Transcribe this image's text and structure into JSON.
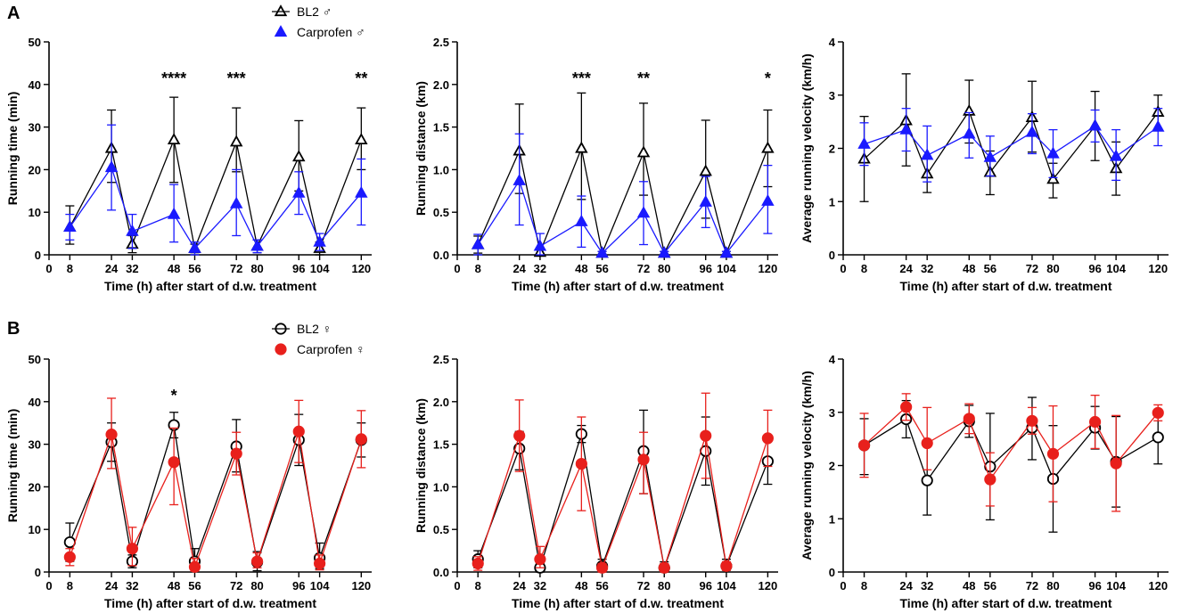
{
  "chart_data": {
    "rows": [
      {
        "letter": "A",
        "legend": [
          {
            "label": "BL2 ♂",
            "color": "#000000",
            "marker": "triangle-open"
          },
          {
            "label": "Carprofen ♂",
            "color": "#1a1aff",
            "marker": "triangle-filled"
          }
        ],
        "series_colors": [
          "#000000",
          "#1a1aff"
        ],
        "series_markers": [
          "triangle-open",
          "triangle-filled"
        ]
      },
      {
        "letter": "B",
        "legend": [
          {
            "label": "BL2 ♀",
            "color": "#000000",
            "marker": "circle-open"
          },
          {
            "label": "Carprofen ♀",
            "color": "#e8201c",
            "marker": "circle-filled"
          }
        ],
        "series_colors": [
          "#000000",
          "#e8201c"
        ],
        "series_markers": [
          "circle-open",
          "circle-filled"
        ]
      }
    ],
    "x_values": [
      8,
      24,
      32,
      48,
      56,
      72,
      80,
      96,
      104,
      120
    ],
    "x_tick_labels": [
      "0",
      "8",
      "24",
      "32",
      "48",
      "56",
      "72",
      "80",
      "96",
      "104",
      "120"
    ],
    "x_ticks": [
      0,
      8,
      24,
      32,
      48,
      56,
      72,
      80,
      96,
      104,
      120
    ],
    "xlabel": "Time (h) after start of d.w. treatment",
    "xlim": [
      0,
      124
    ],
    "charts": [
      {
        "id": "A-time",
        "row": 0,
        "col": 0,
        "type": "line",
        "ylabel": "Running time (min)",
        "ylim": [
          0,
          50
        ],
        "y_ticks": [
          0,
          10,
          20,
          30,
          40,
          50
        ],
        "y_tick_labels": [
          "0",
          "10",
          "20",
          "30",
          "40",
          "50"
        ],
        "series": [
          {
            "name": "BL2 ♂",
            "values": [
              6.5,
              25,
              2.5,
              27,
              1.5,
              26.5,
              2,
              23,
              1.5,
              27
            ],
            "err_up": [
              5,
              9,
              2,
              10,
              1,
              8,
              1.5,
              8.5,
              1.5,
              7.5
            ],
            "err_down": [
              4,
              8,
              2,
              10,
              1,
              7,
              1.5,
              8,
              1.5,
              7
            ]
          },
          {
            "name": "Carprofen ♂",
            "values": [
              6.5,
              20.5,
              5.5,
              9.5,
              1.5,
              12,
              2,
              14.5,
              3,
              14.5
            ],
            "err_up": [
              3,
              10,
              4,
              7,
              1.5,
              8,
              1.5,
              5,
              2,
              8
            ],
            "err_down": [
              3,
              10,
              4,
              6.5,
              1.5,
              7.5,
              1.5,
              5,
              2,
              7.5
            ]
          }
        ],
        "annotations": [
          {
            "x": 48,
            "text": "****"
          },
          {
            "x": 72,
            "text": "***"
          },
          {
            "x": 120,
            "text": "**"
          }
        ]
      },
      {
        "id": "A-distance",
        "row": 0,
        "col": 1,
        "type": "line",
        "ylabel": "Running distance (km)",
        "ylim": [
          0,
          2.5
        ],
        "y_ticks": [
          0,
          0.5,
          1.0,
          1.5,
          2.0,
          2.5
        ],
        "y_tick_labels": [
          "0.0",
          "0.5",
          "1.0",
          "1.5",
          "2.0",
          "2.5"
        ],
        "series": [
          {
            "name": "BL2 ♂",
            "values": [
              0.12,
              1.22,
              0.03,
              1.25,
              0.02,
              1.2,
              0.02,
              0.98,
              0.02,
              1.25
            ],
            "err_up": [
              0.1,
              0.55,
              0.05,
              0.65,
              0.02,
              0.58,
              0.02,
              0.6,
              0.02,
              0.45
            ],
            "err_down": [
              0.1,
              0.5,
              0.03,
              0.6,
              0.02,
              0.5,
              0.02,
              0.55,
              0.02,
              0.45
            ]
          },
          {
            "name": "Carprofen ♂",
            "values": [
              0.12,
              0.87,
              0.1,
              0.39,
              0.02,
              0.49,
              0.02,
              0.62,
              0.02,
              0.63
            ],
            "err_up": [
              0.12,
              0.55,
              0.15,
              0.3,
              0.02,
              0.37,
              0.02,
              0.3,
              0.02,
              0.42
            ],
            "err_down": [
              0.12,
              0.52,
              0.1,
              0.3,
              0.02,
              0.37,
              0.02,
              0.3,
              0.02,
              0.38
            ]
          }
        ],
        "annotations": [
          {
            "x": 48,
            "text": "***"
          },
          {
            "x": 72,
            "text": "**"
          },
          {
            "x": 120,
            "text": "*"
          }
        ]
      },
      {
        "id": "A-velocity",
        "row": 0,
        "col": 2,
        "type": "line",
        "ylabel": "Average running velocity (km/h)",
        "ylim": [
          0,
          4
        ],
        "y_ticks": [
          0,
          1,
          2,
          3,
          4
        ],
        "y_tick_labels": [
          "0",
          "1",
          "2",
          "3",
          "4"
        ],
        "series": [
          {
            "name": "BL2 ♂",
            "values": [
              1.8,
              2.52,
              1.52,
              2.7,
              1.55,
              2.58,
              1.42,
              2.42,
              1.62,
              2.68
            ],
            "err_up": [
              0.8,
              0.88,
              0.3,
              0.58,
              0.4,
              0.68,
              0.3,
              0.65,
              0.5,
              0.32
            ],
            "err_down": [
              0.8,
              0.85,
              0.35,
              0.6,
              0.42,
              0.65,
              0.35,
              0.65,
              0.5,
              0.32
            ]
          },
          {
            "name": "Carprofen ♂",
            "values": [
              2.08,
              2.35,
              1.87,
              2.27,
              1.83,
              2.3,
              1.9,
              2.42,
              1.85,
              2.4
            ],
            "err_up": [
              0.4,
              0.4,
              0.55,
              0.4,
              0.4,
              0.35,
              0.45,
              0.3,
              0.5,
              0.35
            ],
            "err_down": [
              0.4,
              0.4,
              0.5,
              0.45,
              0.35,
              0.4,
              0.45,
              0.3,
              0.45,
              0.35
            ]
          }
        ],
        "annotations": []
      },
      {
        "id": "B-time",
        "row": 1,
        "col": 0,
        "type": "line",
        "ylabel": "Running time (min)",
        "ylim": [
          0,
          50
        ],
        "y_ticks": [
          0,
          10,
          20,
          30,
          40,
          50
        ],
        "y_tick_labels": [
          "0",
          "10",
          "20",
          "30",
          "40",
          "50"
        ],
        "series": [
          {
            "name": "BL2 ♀",
            "values": [
              7,
              30.5,
              2.5,
              34.5,
              2.5,
              29.5,
              2.3,
              31,
              3.3,
              31
            ],
            "err_up": [
              4.5,
              4.5,
              1.5,
              3,
              3,
              6.3,
              2.5,
              6,
              3.5,
              4
            ],
            "err_down": [
              4.5,
              4.5,
              1.5,
              3,
              2,
              6,
              2,
              6,
              2.5,
              4
            ]
          },
          {
            "name": "Carprofen ♀",
            "values": [
              3.5,
              32.3,
              5.5,
              25.8,
              1.2,
              27.8,
              2.5,
              33,
              2,
              31.2
            ],
            "err_up": [
              2,
              8.5,
              5,
              8,
              2,
              5,
              2,
              7.3,
              2,
              6.7
            ],
            "err_down": [
              2,
              8,
              4,
              10,
              1,
              5,
              1.5,
              7.3,
              1.5,
              6.7
            ]
          }
        ],
        "annotations": [
          {
            "x": 48,
            "text": "*"
          }
        ]
      },
      {
        "id": "B-distance",
        "row": 1,
        "col": 1,
        "type": "line",
        "ylabel": "Running distance (km)",
        "ylim": [
          0,
          2.5
        ],
        "y_ticks": [
          0,
          0.5,
          1.0,
          1.5,
          2.0,
          2.5
        ],
        "y_tick_labels": [
          "0.0",
          "0.5",
          "1.0",
          "1.5",
          "2.0",
          "2.5"
        ],
        "series": [
          {
            "name": "BL2 ♀",
            "values": [
              0.15,
              1.45,
              0.05,
              1.62,
              0.07,
              1.42,
              0.05,
              1.42,
              0.07,
              1.3
            ],
            "err_up": [
              0.1,
              0.2,
              0.05,
              0.1,
              0.08,
              0.48,
              0.07,
              0.4,
              0.08,
              0.25
            ],
            "err_down": [
              0.1,
              0.25,
              0.05,
              0.1,
              0.05,
              0.5,
              0.05,
              0.4,
              0.05,
              0.27
            ]
          },
          {
            "name": "Carprofen ♀",
            "values": [
              0.1,
              1.6,
              0.15,
              1.27,
              0.05,
              1.32,
              0.05,
              1.6,
              0.07,
              1.57
            ],
            "err_up": [
              0.08,
              0.42,
              0.15,
              0.55,
              0.05,
              0.32,
              0.05,
              0.5,
              0.05,
              0.33
            ],
            "err_down": [
              0.08,
              0.42,
              0.1,
              0.55,
              0.05,
              0.4,
              0.05,
              0.5,
              0.05,
              0.33
            ]
          }
        ],
        "annotations": []
      },
      {
        "id": "B-velocity",
        "row": 1,
        "col": 2,
        "type": "line",
        "ylabel": "Average running velocity (km/h)",
        "ylim": [
          0,
          4
        ],
        "y_ticks": [
          0,
          1,
          2,
          3,
          4
        ],
        "y_tick_labels": [
          "0",
          "1",
          "2",
          "3",
          "4"
        ],
        "series": [
          {
            "name": "BL2 ♀",
            "values": [
              2.38,
              2.87,
              1.72,
              2.83,
              1.98,
              2.71,
              1.75,
              2.71,
              2.07,
              2.53
            ],
            "err_up": [
              0.5,
              0.35,
              0.65,
              0.3,
              1.0,
              0.57,
              1.0,
              0.4,
              0.85,
              0.45
            ],
            "err_down": [
              0.55,
              0.35,
              0.65,
              0.3,
              1.0,
              0.6,
              1.0,
              0.4,
              0.85,
              0.5
            ]
          },
          {
            "name": "Carprofen ♀",
            "values": [
              2.38,
              3.1,
              2.42,
              2.88,
              1.74,
              2.84,
              2.22,
              2.82,
              2.04,
              2.99
            ],
            "err_up": [
              0.6,
              0.25,
              0.67,
              0.28,
              0.5,
              0.25,
              0.9,
              0.5,
              0.9,
              0.15
            ],
            "err_down": [
              0.6,
              0.25,
              0.5,
              0.28,
              0.5,
              0.25,
              0.9,
              0.5,
              0.9,
              0.15
            ]
          }
        ],
        "annotations": []
      }
    ]
  }
}
